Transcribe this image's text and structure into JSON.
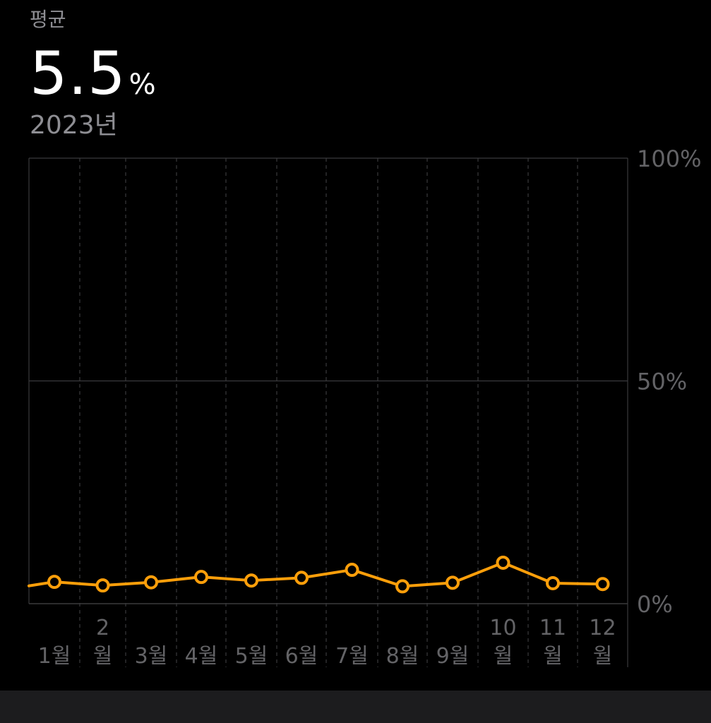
{
  "summary": {
    "label": "평균",
    "value": "5.5",
    "unit": "%",
    "period": "2023년"
  },
  "colors": {
    "line": "#ff9f0a",
    "marker_fill": "#000000",
    "grid": "#3a3a3c",
    "axis_text": "#636366",
    "background": "#000000"
  },
  "chart_data": {
    "type": "line",
    "categories": [
      "1월",
      "2월",
      "3월",
      "4월",
      "5월",
      "6월",
      "7월",
      "8월",
      "9월",
      "10월",
      "11월",
      "12월"
    ],
    "category_label_lines": [
      [
        "",
        "1월"
      ],
      [
        "2",
        "월"
      ],
      [
        "",
        "3월"
      ],
      [
        "",
        "4월"
      ],
      [
        "",
        "5월"
      ],
      [
        "",
        "6월"
      ],
      [
        "",
        "7월"
      ],
      [
        "",
        "8월"
      ],
      [
        "",
        "9월"
      ],
      [
        "10",
        "월"
      ],
      [
        "11",
        "월"
      ],
      [
        "12",
        "월"
      ]
    ],
    "series": [
      {
        "values": [
          4.9,
          4.1,
          4.8,
          6.0,
          5.2,
          5.8,
          7.6,
          3.9,
          4.7,
          9.2,
          4.6,
          4.4
        ],
        "lead_in_value": 4.0
      }
    ],
    "ylim": [
      0,
      100
    ],
    "y_ticks": [
      0,
      50,
      100
    ],
    "y_tick_labels": [
      "0%",
      "50%",
      "100%"
    ],
    "grid": true,
    "y_axis_position": "right"
  }
}
